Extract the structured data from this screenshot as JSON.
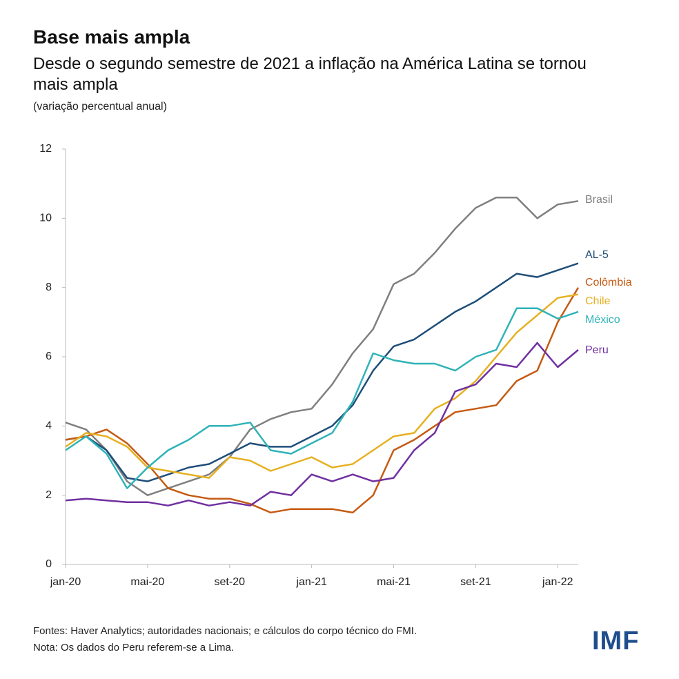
{
  "chart_data": {
    "type": "line",
    "title": "Base mais ampla",
    "subtitle": "Desde o segundo semestre de 2021 a inflação na América Latina se tornou mais ampla",
    "y_label": "(variação percentual anual)",
    "categories": [
      "jan-20",
      null,
      null,
      null,
      "mai-20",
      null,
      null,
      null,
      "set-20",
      null,
      null,
      null,
      "jan-21",
      null,
      null,
      null,
      "mai-21",
      null,
      null,
      null,
      "set-21",
      null,
      null,
      null,
      "jan-22",
      null
    ],
    "series": [
      {
        "name": "Brasil",
        "color": "#7f7f7f",
        "values": [
          4.1,
          3.9,
          3.3,
          2.4,
          2.0,
          2.2,
          2.4,
          2.6,
          3.1,
          3.9,
          4.2,
          4.4,
          4.5,
          5.2,
          6.1,
          6.8,
          8.1,
          8.4,
          9.0,
          9.7,
          10.3,
          10.6,
          10.6,
          10.0,
          10.4,
          10.5
        ]
      },
      {
        "name": "AL-5",
        "color": "#1f4e79",
        "values": [
          3.6,
          3.7,
          3.3,
          2.5,
          2.4,
          2.6,
          2.8,
          2.9,
          3.2,
          3.5,
          3.4,
          3.4,
          3.7,
          4.0,
          4.6,
          5.6,
          6.3,
          6.5,
          6.9,
          7.3,
          7.6,
          8.0,
          8.4,
          8.3,
          8.5,
          8.7
        ]
      },
      {
        "name": "Colômbia",
        "color": "#c55a11",
        "values": [
          3.6,
          3.7,
          3.9,
          3.5,
          2.9,
          2.2,
          2.0,
          1.9,
          1.9,
          1.75,
          1.5,
          1.6,
          1.6,
          1.6,
          1.5,
          2.0,
          3.3,
          3.6,
          4.0,
          4.4,
          4.5,
          4.6,
          5.3,
          5.6,
          7.0,
          8.0
        ]
      },
      {
        "name": "Chile",
        "color": "#e6b020",
        "values": [
          3.4,
          3.8,
          3.7,
          3.4,
          2.8,
          2.7,
          2.6,
          2.5,
          3.1,
          3.0,
          2.7,
          2.9,
          3.1,
          2.8,
          2.9,
          3.3,
          3.7,
          3.8,
          4.5,
          4.8,
          5.3,
          6.0,
          6.7,
          7.2,
          7.7,
          7.8
        ]
      },
      {
        "name": "México",
        "color": "#2fb3b8",
        "values": [
          3.3,
          3.7,
          3.2,
          2.2,
          2.8,
          3.3,
          3.6,
          4.0,
          4.0,
          4.1,
          3.3,
          3.2,
          3.5,
          3.8,
          4.7,
          6.1,
          5.9,
          5.8,
          5.8,
          5.6,
          6.0,
          6.2,
          7.4,
          7.4,
          7.1,
          7.3
        ]
      },
      {
        "name": "Peru",
        "color": "#7030a0",
        "values": [
          1.85,
          1.9,
          1.85,
          1.8,
          1.8,
          1.7,
          1.85,
          1.7,
          1.8,
          1.7,
          2.1,
          2.0,
          2.6,
          2.4,
          2.6,
          2.4,
          2.5,
          3.3,
          3.8,
          5.0,
          5.2,
          5.8,
          5.7,
          6.4,
          5.7,
          6.2
        ]
      }
    ],
    "ylim": [
      0,
      12
    ],
    "yticks": [
      0,
      2,
      4,
      6,
      8,
      10,
      12
    ],
    "source": "Fontes: Haver Analytics; autoridades nacionais; e cálculos do corpo técnico do FMI.",
    "note": "Nota: Os dados do Peru referem-se a Lima.",
    "logo": "IMF"
  }
}
